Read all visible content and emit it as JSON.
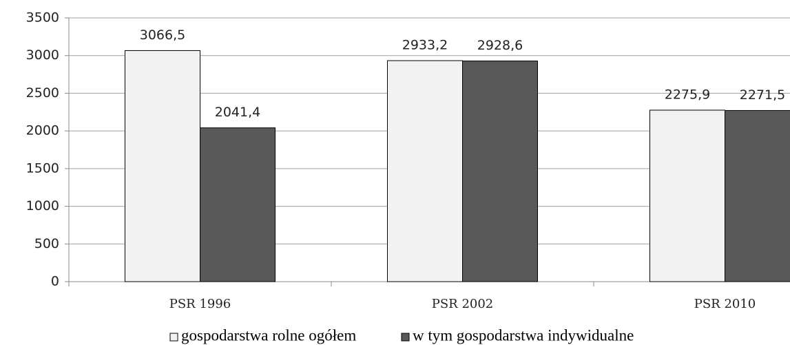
{
  "chart_data": {
    "type": "bar",
    "categories": [
      "PSR 1996",
      "PSR 2002",
      "PSR 2010"
    ],
    "series": [
      {
        "name": "gospodarstwa rolne ogółem",
        "color": "#f2f2f2",
        "values": [
          3066.5,
          2933.2,
          2275.9
        ],
        "value_labels": [
          "3066,5",
          "2933,2",
          "2275,9"
        ]
      },
      {
        "name": "w tym gospodarstwa indywidualne",
        "color": "#595959",
        "values": [
          2041.4,
          2928.6,
          2271.5
        ],
        "value_labels": [
          "2041,4",
          "2928,6",
          "2271,5"
        ]
      }
    ],
    "ylim": [
      0,
      3500
    ],
    "yticks": [
      0,
      500,
      1000,
      1500,
      2000,
      2500,
      3000,
      3500
    ],
    "grid": true
  }
}
